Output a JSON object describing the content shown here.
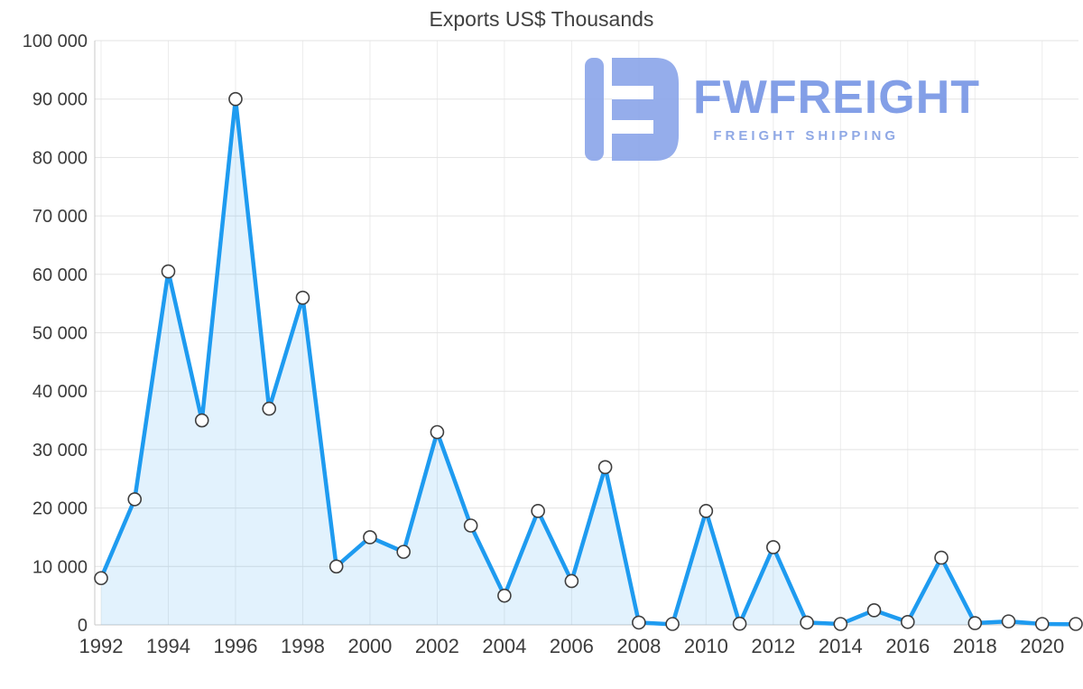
{
  "title": "Exports US$ Thousands",
  "logo": {
    "brand": "FWFREIGHT",
    "tagline": "FREIGHT SHIPPING",
    "icon_color": "#90a9ea",
    "brand_color": "#7d9ae6"
  },
  "chart_data": {
    "type": "area",
    "title": "Exports US$ Thousands",
    "xlabel": "",
    "ylabel": "",
    "x": [
      1992,
      1993,
      1994,
      1995,
      1996,
      1997,
      1998,
      1999,
      2000,
      2001,
      2002,
      2003,
      2004,
      2005,
      2006,
      2007,
      2008,
      2009,
      2010,
      2011,
      2012,
      2013,
      2014,
      2015,
      2016,
      2017,
      2018,
      2019,
      2020,
      2021
    ],
    "values": [
      8000,
      21500,
      60500,
      35000,
      90000,
      37000,
      56000,
      10000,
      15000,
      12500,
      33000,
      17000,
      5000,
      19500,
      7500,
      27000,
      400,
      100,
      19500,
      200,
      13300,
      400,
      150,
      2500,
      500,
      11500,
      300,
      600,
      150,
      100
    ],
    "ylim": [
      0,
      100000
    ],
    "y_tick_step": 10000,
    "y_tick_labels": [
      "0",
      "10 000",
      "20 000",
      "30 000",
      "40 000",
      "50 000",
      "60 000",
      "70 000",
      "80 000",
      "90 000",
      "100 000"
    ],
    "x_tick_labels": [
      "1992",
      "1994",
      "1996",
      "1998",
      "2000",
      "2002",
      "2004",
      "2006",
      "2008",
      "2010",
      "2012",
      "2014",
      "2016",
      "2018",
      "2020"
    ],
    "x_tick_years": [
      1992,
      1994,
      1996,
      1998,
      2000,
      2002,
      2004,
      2006,
      2008,
      2010,
      2012,
      2014,
      2016,
      2018,
      2020
    ],
    "grid": true,
    "legend": false,
    "colors": {
      "line": "#1e9bf0",
      "fill": "rgba(30,155,240,0.13)",
      "marker_fill": "#ffffff",
      "marker_stroke": "#3f3f3f",
      "grid_h": "#e3e3e3",
      "grid_v": "#ececec",
      "axis": "#c8c8c8",
      "tick_text": "#3c3c3c"
    }
  }
}
